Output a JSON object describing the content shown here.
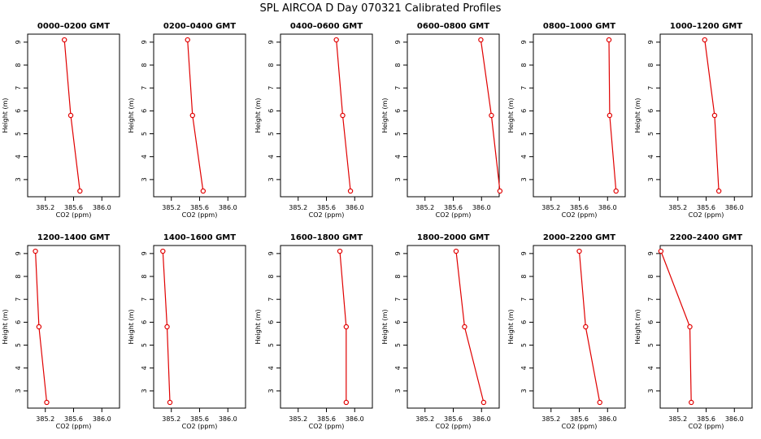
{
  "figure": {
    "title": "SPL AIRCOA D  Day 070321  Calibrated Profiles"
  },
  "colors": {
    "series": "#e00000",
    "axis": "#000000"
  },
  "chart_data": [
    {
      "type": "line",
      "title": "0000–0200 GMT",
      "xlabel": "CO2 (ppm)",
      "ylabel": "Height (m)",
      "xlim": [
        384.95,
        386.25
      ],
      "ylim": [
        2.25,
        9.35
      ],
      "x_ticks": [
        "385.2",
        "385.6",
        "386.0"
      ],
      "y_ticks": [
        "3",
        "4",
        "5",
        "6",
        "7",
        "8",
        "9"
      ],
      "series": [
        {
          "x": [
            385.47,
            385.56,
            385.69
          ],
          "y": [
            9.1,
            5.8,
            2.5
          ]
        }
      ]
    },
    {
      "type": "line",
      "title": "0200–0400 GMT",
      "xlabel": "CO2 (ppm)",
      "ylabel": "Height (m)",
      "xlim": [
        384.95,
        386.25
      ],
      "ylim": [
        2.25,
        9.35
      ],
      "x_ticks": [
        "385.2",
        "385.6",
        "386.0"
      ],
      "y_ticks": [
        "3",
        "4",
        "5",
        "6",
        "7",
        "8",
        "9"
      ],
      "series": [
        {
          "x": [
            385.43,
            385.5,
            385.65
          ],
          "y": [
            9.1,
            5.8,
            2.5
          ]
        }
      ]
    },
    {
      "type": "line",
      "title": "0400–0600 GMT",
      "xlabel": "CO2 (ppm)",
      "ylabel": "Height (m)",
      "xlim": [
        384.95,
        386.25
      ],
      "ylim": [
        2.25,
        9.35
      ],
      "x_ticks": [
        "385.2",
        "385.6",
        "386.0"
      ],
      "y_ticks": [
        "3",
        "4",
        "5",
        "6",
        "7",
        "8",
        "9"
      ],
      "series": [
        {
          "x": [
            385.74,
            385.83,
            385.94
          ],
          "y": [
            9.1,
            5.8,
            2.5
          ]
        }
      ]
    },
    {
      "type": "line",
      "title": "0600–0800 GMT",
      "xlabel": "CO2 (ppm)",
      "ylabel": "Height (m)",
      "xlim": [
        384.95,
        386.25
      ],
      "ylim": [
        2.25,
        9.35
      ],
      "x_ticks": [
        "385.2",
        "385.6",
        "386.0"
      ],
      "y_ticks": [
        "3",
        "4",
        "5",
        "6",
        "7",
        "8",
        "9"
      ],
      "series": [
        {
          "x": [
            385.99,
            386.14,
            386.26
          ],
          "y": [
            9.1,
            5.8,
            2.5
          ]
        }
      ]
    },
    {
      "type": "line",
      "title": "0800–1000 GMT",
      "xlabel": "CO2 (ppm)",
      "ylabel": "Height (m)",
      "xlim": [
        384.95,
        386.25
      ],
      "ylim": [
        2.25,
        9.35
      ],
      "x_ticks": [
        "385.2",
        "385.6",
        "386.0"
      ],
      "y_ticks": [
        "3",
        "4",
        "5",
        "6",
        "7",
        "8",
        "9"
      ],
      "series": [
        {
          "x": [
            386.02,
            386.03,
            386.12
          ],
          "y": [
            9.1,
            5.8,
            2.5
          ]
        }
      ]
    },
    {
      "type": "line",
      "title": "1000–1200 GMT",
      "xlabel": "CO2 (ppm)",
      "ylabel": "Height (m)",
      "xlim": [
        384.95,
        386.25
      ],
      "ylim": [
        2.25,
        9.35
      ],
      "x_ticks": [
        "385.2",
        "385.6",
        "386.0"
      ],
      "y_ticks": [
        "3",
        "4",
        "5",
        "6",
        "7",
        "8",
        "9"
      ],
      "series": [
        {
          "x": [
            385.58,
            385.72,
            385.78
          ],
          "y": [
            9.1,
            5.8,
            2.5
          ]
        }
      ]
    },
    {
      "type": "line",
      "title": "1200–1400 GMT",
      "xlabel": "CO2 (ppm)",
      "ylabel": "Height (m)",
      "xlim": [
        384.95,
        386.25
      ],
      "ylim": [
        2.25,
        9.35
      ],
      "x_ticks": [
        "385.2",
        "385.6",
        "386.0"
      ],
      "y_ticks": [
        "3",
        "4",
        "5",
        "6",
        "7",
        "8",
        "9"
      ],
      "series": [
        {
          "x": [
            385.06,
            385.11,
            385.22
          ],
          "y": [
            9.1,
            5.8,
            2.5
          ]
        }
      ]
    },
    {
      "type": "line",
      "title": "1400–1600 GMT",
      "xlabel": "CO2 (ppm)",
      "ylabel": "Height (m)",
      "xlim": [
        384.95,
        386.25
      ],
      "ylim": [
        2.25,
        9.35
      ],
      "x_ticks": [
        "385.2",
        "385.6",
        "386.0"
      ],
      "y_ticks": [
        "3",
        "4",
        "5",
        "6",
        "7",
        "8",
        "9"
      ],
      "series": [
        {
          "x": [
            385.08,
            385.14,
            385.18
          ],
          "y": [
            9.1,
            5.8,
            2.5
          ]
        }
      ]
    },
    {
      "type": "line",
      "title": "1600–1800 GMT",
      "xlabel": "CO2 (ppm)",
      "ylabel": "Height (m)",
      "xlim": [
        384.95,
        386.25
      ],
      "ylim": [
        2.25,
        9.35
      ],
      "x_ticks": [
        "385.2",
        "385.6",
        "386.0"
      ],
      "y_ticks": [
        "3",
        "4",
        "5",
        "6",
        "7",
        "8",
        "9"
      ],
      "series": [
        {
          "x": [
            385.79,
            385.88,
            385.88
          ],
          "y": [
            9.1,
            5.8,
            2.5
          ]
        }
      ]
    },
    {
      "type": "line",
      "title": "1800–2000 GMT",
      "xlabel": "CO2 (ppm)",
      "ylabel": "Height (m)",
      "xlim": [
        384.95,
        386.25
      ],
      "ylim": [
        2.25,
        9.35
      ],
      "x_ticks": [
        "385.2",
        "385.6",
        "386.0"
      ],
      "y_ticks": [
        "3",
        "4",
        "5",
        "6",
        "7",
        "8",
        "9"
      ],
      "series": [
        {
          "x": [
            385.64,
            385.76,
            386.03
          ],
          "y": [
            9.1,
            5.8,
            2.5
          ]
        }
      ]
    },
    {
      "type": "line",
      "title": "2000–2200 GMT",
      "xlabel": "CO2 (ppm)",
      "ylabel": "Height (m)",
      "xlim": [
        384.95,
        386.25
      ],
      "ylim": [
        2.25,
        9.35
      ],
      "x_ticks": [
        "385.2",
        "385.6",
        "386.0"
      ],
      "y_ticks": [
        "3",
        "4",
        "5",
        "6",
        "7",
        "8",
        "9"
      ],
      "series": [
        {
          "x": [
            385.6,
            385.69,
            385.89
          ],
          "y": [
            9.1,
            5.8,
            2.5
          ]
        }
      ]
    },
    {
      "type": "line",
      "title": "2200–2400 GMT",
      "xlabel": "CO2 (ppm)",
      "ylabel": "Height (m)",
      "xlim": [
        384.95,
        386.25
      ],
      "ylim": [
        2.25,
        9.35
      ],
      "x_ticks": [
        "385.2",
        "385.6",
        "386.0"
      ],
      "y_ticks": [
        "3",
        "4",
        "5",
        "6",
        "7",
        "8",
        "9"
      ],
      "series": [
        {
          "x": [
            384.96,
            385.37,
            385.39
          ],
          "y": [
            9.1,
            5.8,
            2.5
          ]
        }
      ]
    }
  ]
}
